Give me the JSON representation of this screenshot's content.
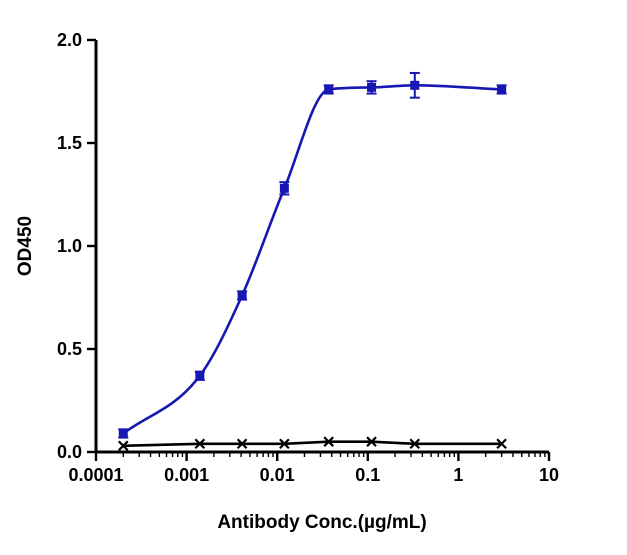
{
  "chart_data": {
    "type": "line",
    "title": "",
    "xlabel": "Antibody Conc.(µg/mL)",
    "ylabel": "OD450",
    "x_scale": "log",
    "xlim": [
      0.0001,
      10
    ],
    "ylim": [
      0.0,
      2.0
    ],
    "grid": false,
    "legend": "none",
    "x_ticks": [
      0.0001,
      0.001,
      0.01,
      0.1,
      1,
      10
    ],
    "x_tick_labels": [
      "0.0001",
      "0.001",
      "0.01",
      "0.1",
      "1",
      "10"
    ],
    "y_ticks": [
      0.0,
      0.5,
      1.0,
      1.5,
      2.0
    ],
    "y_tick_labels": [
      "0.0",
      "0.5",
      "1.0",
      "1.5",
      "2.0"
    ],
    "series": [
      {
        "name": "blue-squares",
        "marker": "square",
        "color": "#1717b4",
        "curve": "spline",
        "x": [
          0.0002,
          0.0014,
          0.0041,
          0.012,
          0.037,
          0.11,
          0.33,
          3
        ],
        "y": [
          0.09,
          0.37,
          0.76,
          1.28,
          1.76,
          1.77,
          1.78,
          1.76
        ],
        "yerr": [
          0.02,
          0.02,
          0.02,
          0.03,
          0.02,
          0.03,
          0.06,
          0.02
        ]
      },
      {
        "name": "black-x",
        "marker": "x",
        "color": "#000000",
        "curve": "line",
        "x": [
          0.0002,
          0.0014,
          0.0041,
          0.012,
          0.037,
          0.11,
          0.33,
          3
        ],
        "y": [
          0.03,
          0.04,
          0.04,
          0.04,
          0.05,
          0.05,
          0.04,
          0.04
        ],
        "yerr": [
          0,
          0,
          0,
          0,
          0,
          0,
          0,
          0
        ]
      }
    ]
  }
}
